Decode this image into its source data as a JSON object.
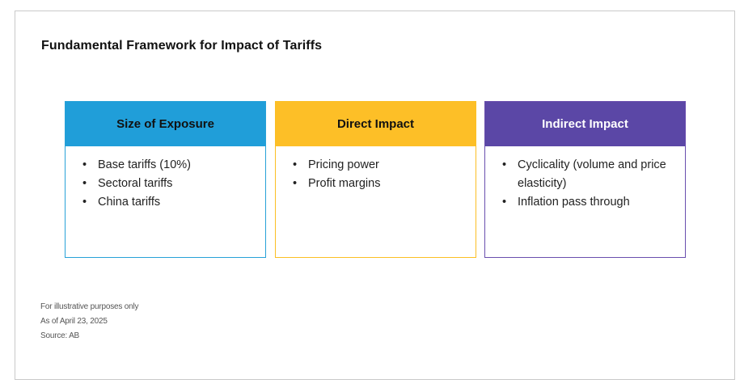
{
  "title": "Fundamental Framework for Impact of Tariffs",
  "cards": [
    {
      "header": "Size of Exposure",
      "items": [
        "Base tariffs (10%)",
        "Sectoral tariffs",
        "China tariffs"
      ]
    },
    {
      "header": "Direct Impact",
      "items": [
        "Pricing power",
        "Profit margins"
      ]
    },
    {
      "header": "Indirect Impact",
      "items": [
        "Cyclicality (volume and price elasticity)",
        "Inflation pass through"
      ]
    }
  ],
  "notes": {
    "disclaimer": "For illustrative purposes only",
    "date": "As of April 23, 2025",
    "source": "Source: AB"
  },
  "colors": {
    "card_1": "#209ed9",
    "card_2": "#fdbf27",
    "card_3": "#5b47a6"
  }
}
